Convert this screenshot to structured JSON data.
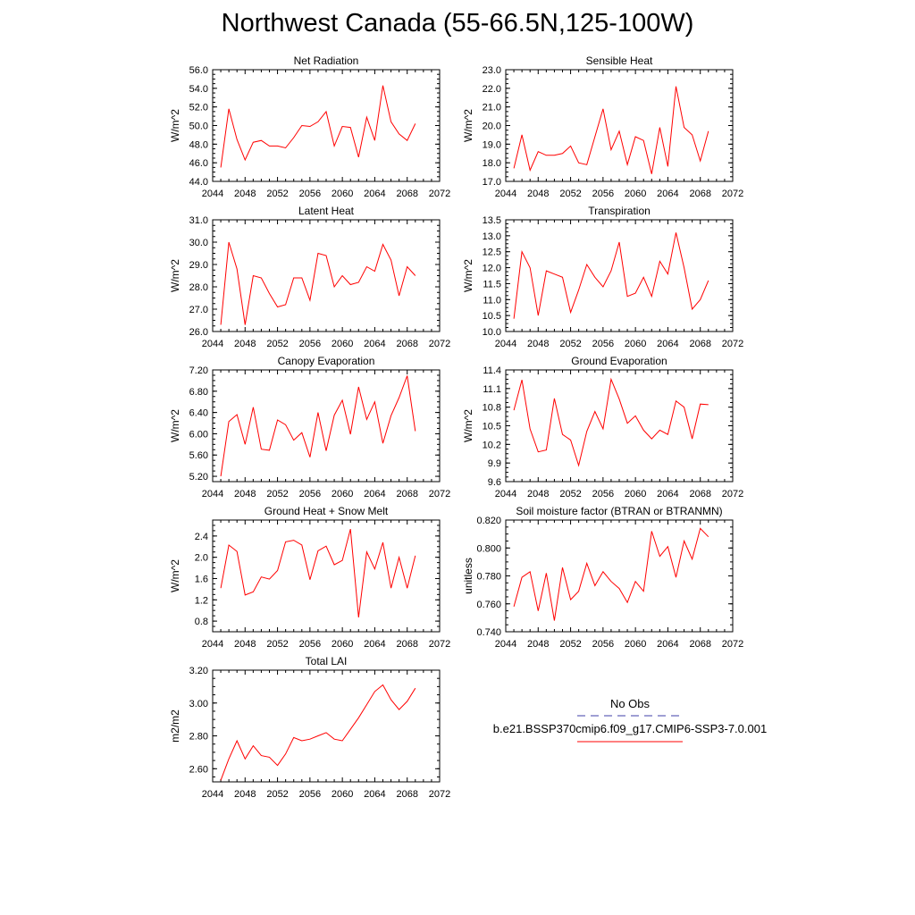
{
  "figure": {
    "title": "Northwest Canada (55-66.5N,125-100W)",
    "line_color": "#ff0000",
    "legend": {
      "obs_label": "No Obs",
      "obs_color": "#3f3faa",
      "model_label": "b.e21.BSSP370cmip6.f09_g17.CMIP6-SSP3-7.0.001",
      "model_color": "#ff0000"
    }
  },
  "chart_data": [
    {
      "type": "line",
      "title": "Net Radiation",
      "xlabel": "",
      "ylabel": "W/m^2",
      "xlim": [
        2044,
        2072
      ],
      "ylim": [
        44.0,
        56.0
      ],
      "xticks": [
        "2044",
        "2048",
        "2052",
        "2056",
        "2060",
        "2064",
        "2068",
        "2072"
      ],
      "yticks": [
        "44.0",
        "46.0",
        "48.0",
        "50.0",
        "52.0",
        "54.0",
        "56.0"
      ],
      "x": [
        2045,
        2046,
        2047,
        2048,
        2049,
        2050,
        2051,
        2052,
        2053,
        2054,
        2055,
        2056,
        2057,
        2058,
        2059,
        2060,
        2061,
        2062,
        2063,
        2064,
        2065,
        2066,
        2067,
        2068,
        2069
      ],
      "series": [
        {
          "name": "b.e21.BSSP370cmip6.f09_g17.CMIP6-SSP3-7.0.001",
          "values": [
            45.5,
            51.8,
            48.5,
            46.3,
            48.2,
            48.4,
            47.8,
            47.8,
            47.6,
            48.7,
            50.0,
            49.9,
            50.4,
            51.5,
            47.8,
            49.9,
            49.8,
            46.6,
            50.9,
            48.4,
            54.3,
            50.4,
            49.1,
            48.4,
            50.2
          ]
        }
      ]
    },
    {
      "type": "line",
      "title": "Sensible Heat",
      "xlabel": "",
      "ylabel": "W/m^2",
      "xlim": [
        2044,
        2072
      ],
      "ylim": [
        17.0,
        23.0
      ],
      "xticks": [
        "2044",
        "2048",
        "2052",
        "2056",
        "2060",
        "2064",
        "2068",
        "2072"
      ],
      "yticks": [
        "17.0",
        "18.0",
        "19.0",
        "20.0",
        "21.0",
        "22.0",
        "23.0"
      ],
      "x": [
        2045,
        2046,
        2047,
        2048,
        2049,
        2050,
        2051,
        2052,
        2053,
        2054,
        2055,
        2056,
        2057,
        2058,
        2059,
        2060,
        2061,
        2062,
        2063,
        2064,
        2065,
        2066,
        2067,
        2068,
        2069
      ],
      "series": [
        {
          "name": "b.e21.BSSP370cmip6.f09_g17.CMIP6-SSP3-7.0.001",
          "values": [
            17.7,
            19.5,
            17.6,
            18.6,
            18.4,
            18.4,
            18.5,
            18.9,
            18.0,
            17.9,
            19.4,
            20.9,
            18.7,
            19.7,
            17.9,
            19.4,
            19.2,
            17.4,
            19.9,
            17.8,
            22.1,
            19.9,
            19.5,
            18.1,
            19.7
          ]
        }
      ]
    },
    {
      "type": "line",
      "title": "Latent Heat",
      "xlabel": "",
      "ylabel": "W/m^2",
      "xlim": [
        2044,
        2072
      ],
      "ylim": [
        26.0,
        31.0
      ],
      "xticks": [
        "2044",
        "2048",
        "2052",
        "2056",
        "2060",
        "2064",
        "2068",
        "2072"
      ],
      "yticks": [
        "26.0",
        "27.0",
        "28.0",
        "29.0",
        "30.0",
        "31.0"
      ],
      "x": [
        2045,
        2046,
        2047,
        2048,
        2049,
        2050,
        2051,
        2052,
        2053,
        2054,
        2055,
        2056,
        2057,
        2058,
        2059,
        2060,
        2061,
        2062,
        2063,
        2064,
        2065,
        2066,
        2067,
        2068,
        2069
      ],
      "series": [
        {
          "name": "b.e21.BSSP370cmip6.f09_g17.CMIP6-SSP3-7.0.001",
          "values": [
            26.3,
            30.0,
            28.8,
            26.3,
            28.5,
            28.4,
            27.7,
            27.1,
            27.2,
            28.4,
            28.4,
            27.4,
            29.5,
            29.4,
            28.0,
            28.5,
            28.1,
            28.2,
            28.9,
            28.7,
            29.9,
            29.2,
            27.6,
            28.9,
            28.5
          ]
        }
      ]
    },
    {
      "type": "line",
      "title": "Transpiration",
      "xlabel": "",
      "ylabel": "W/m^2",
      "xlim": [
        2044,
        2072
      ],
      "ylim": [
        10.0,
        13.5
      ],
      "xticks": [
        "2044",
        "2048",
        "2052",
        "2056",
        "2060",
        "2064",
        "2068",
        "2072"
      ],
      "yticks": [
        "10.0",
        "10.5",
        "11.0",
        "11.5",
        "12.0",
        "12.5",
        "13.0",
        "13.5"
      ],
      "x": [
        2045,
        2046,
        2047,
        2048,
        2049,
        2050,
        2051,
        2052,
        2053,
        2054,
        2055,
        2056,
        2057,
        2058,
        2059,
        2060,
        2061,
        2062,
        2063,
        2064,
        2065,
        2066,
        2067,
        2068,
        2069
      ],
      "series": [
        {
          "name": "b.e21.BSSP370cmip6.f09_g17.CMIP6-SSP3-7.0.001",
          "values": [
            10.4,
            12.5,
            12.0,
            10.5,
            11.9,
            11.8,
            11.7,
            10.6,
            11.3,
            12.1,
            11.7,
            11.4,
            11.9,
            12.8,
            11.1,
            11.2,
            11.7,
            11.1,
            12.2,
            11.8,
            13.1,
            12.0,
            10.7,
            11.0,
            11.6
          ]
        }
      ]
    },
    {
      "type": "line",
      "title": "Canopy Evaporation",
      "xlabel": "",
      "ylabel": "W/m^2",
      "xlim": [
        2044,
        2072
      ],
      "ylim": [
        5.1,
        7.2
      ],
      "xticks": [
        "2044",
        "2048",
        "2052",
        "2056",
        "2060",
        "2064",
        "2068",
        "2072"
      ],
      "yticks": [
        "5.20",
        "5.60",
        "6.00",
        "6.40",
        "6.80",
        "7.20"
      ],
      "x": [
        2045,
        2046,
        2047,
        2048,
        2049,
        2050,
        2051,
        2052,
        2053,
        2054,
        2055,
        2056,
        2057,
        2058,
        2059,
        2060,
        2061,
        2062,
        2063,
        2064,
        2065,
        2066,
        2067,
        2068,
        2069
      ],
      "series": [
        {
          "name": "b.e21.BSSP370cmip6.f09_g17.CMIP6-SSP3-7.0.001",
          "values": [
            5.2,
            6.23,
            6.36,
            5.8,
            6.5,
            5.71,
            5.69,
            6.26,
            6.17,
            5.88,
            6.02,
            5.56,
            6.4,
            5.68,
            6.35,
            6.63,
            5.99,
            6.88,
            6.27,
            6.6,
            5.82,
            6.34,
            6.68,
            7.09,
            6.05
          ]
        }
      ]
    },
    {
      "type": "line",
      "title": "Ground Evaporation",
      "xlabel": "",
      "ylabel": "W/m^2",
      "xlim": [
        2044,
        2072
      ],
      "ylim": [
        9.6,
        11.4
      ],
      "xticks": [
        "2044",
        "2048",
        "2052",
        "2056",
        "2060",
        "2064",
        "2068",
        "2072"
      ],
      "yticks": [
        "9.6",
        "9.9",
        "10.2",
        "10.5",
        "10.8",
        "11.1",
        "11.4"
      ],
      "x": [
        2045,
        2046,
        2047,
        2048,
        2049,
        2050,
        2051,
        2052,
        2053,
        2054,
        2055,
        2056,
        2057,
        2058,
        2059,
        2060,
        2061,
        2062,
        2063,
        2064,
        2065,
        2066,
        2067,
        2068,
        2069
      ],
      "series": [
        {
          "name": "b.e21.BSSP370cmip6.f09_g17.CMIP6-SSP3-7.0.001",
          "values": [
            10.75,
            11.24,
            10.45,
            10.08,
            10.11,
            10.94,
            10.36,
            10.27,
            9.86,
            10.41,
            10.73,
            10.45,
            11.25,
            10.93,
            10.54,
            10.66,
            10.43,
            10.29,
            10.43,
            10.36,
            10.9,
            10.8,
            10.29,
            10.85,
            10.84
          ]
        }
      ]
    },
    {
      "type": "line",
      "title": "Ground Heat + Snow Melt",
      "xlabel": "",
      "ylabel": "W/m^2",
      "xlim": [
        2044,
        2072
      ],
      "ylim": [
        0.6,
        2.7
      ],
      "xticks": [
        "2044",
        "2048",
        "2052",
        "2056",
        "2060",
        "2064",
        "2068",
        "2072"
      ],
      "yticks": [
        "0.8",
        "1.2",
        "1.6",
        "2.0",
        "2.4"
      ],
      "x": [
        2045,
        2046,
        2047,
        2048,
        2049,
        2050,
        2051,
        2052,
        2053,
        2054,
        2055,
        2056,
        2057,
        2058,
        2059,
        2060,
        2061,
        2062,
        2063,
        2064,
        2065,
        2066,
        2067,
        2068,
        2069
      ],
      "series": [
        {
          "name": "b.e21.BSSP370cmip6.f09_g17.CMIP6-SSP3-7.0.001",
          "values": [
            1.42,
            2.23,
            2.11,
            1.29,
            1.35,
            1.63,
            1.59,
            1.75,
            2.29,
            2.32,
            2.23,
            1.58,
            2.12,
            2.21,
            1.86,
            1.94,
            2.53,
            0.87,
            2.1,
            1.78,
            2.28,
            1.42,
            2.0,
            1.42,
            2.03
          ]
        }
      ]
    },
    {
      "type": "line",
      "title": "Soil moisture factor (BTRAN or BTRANMN)",
      "xlabel": "",
      "ylabel": "unitless",
      "xlim": [
        2044,
        2072
      ],
      "ylim": [
        0.74,
        0.82
      ],
      "xticks": [
        "2044",
        "2048",
        "2052",
        "2056",
        "2060",
        "2064",
        "2068",
        "2072"
      ],
      "yticks": [
        "0.740",
        "0.760",
        "0.780",
        "0.800",
        "0.820"
      ],
      "x": [
        2045,
        2046,
        2047,
        2048,
        2049,
        2050,
        2051,
        2052,
        2053,
        2054,
        2055,
        2056,
        2057,
        2058,
        2059,
        2060,
        2061,
        2062,
        2063,
        2064,
        2065,
        2066,
        2067,
        2068,
        2069
      ],
      "series": [
        {
          "name": "b.e21.BSSP370cmip6.f09_g17.CMIP6-SSP3-7.0.001",
          "values": [
            0.758,
            0.779,
            0.783,
            0.755,
            0.782,
            0.748,
            0.786,
            0.763,
            0.769,
            0.789,
            0.773,
            0.783,
            0.776,
            0.771,
            0.761,
            0.776,
            0.769,
            0.812,
            0.794,
            0.801,
            0.779,
            0.805,
            0.792,
            0.814,
            0.808
          ]
        }
      ]
    },
    {
      "type": "line",
      "title": "Total LAI",
      "xlabel": "",
      "ylabel": "m2/m2",
      "xlim": [
        2044,
        2072
      ],
      "ylim": [
        2.52,
        3.2
      ],
      "xticks": [
        "2044",
        "2048",
        "2052",
        "2056",
        "2060",
        "2064",
        "2068",
        "2072"
      ],
      "yticks": [
        "2.60",
        "2.80",
        "3.00",
        "3.20"
      ],
      "x": [
        2045,
        2046,
        2047,
        2048,
        2049,
        2050,
        2051,
        2052,
        2053,
        2054,
        2055,
        2056,
        2057,
        2058,
        2059,
        2060,
        2061,
        2062,
        2063,
        2064,
        2065,
        2066,
        2067,
        2068,
        2069
      ],
      "series": [
        {
          "name": "b.e21.BSSP370cmip6.f09_g17.CMIP6-SSP3-7.0.001",
          "values": [
            2.53,
            2.66,
            2.77,
            2.66,
            2.74,
            2.68,
            2.67,
            2.62,
            2.69,
            2.79,
            2.77,
            2.78,
            2.8,
            2.82,
            2.78,
            2.77,
            2.84,
            2.91,
            2.99,
            3.07,
            3.11,
            3.02,
            2.96,
            3.01,
            3.09
          ]
        }
      ]
    }
  ]
}
